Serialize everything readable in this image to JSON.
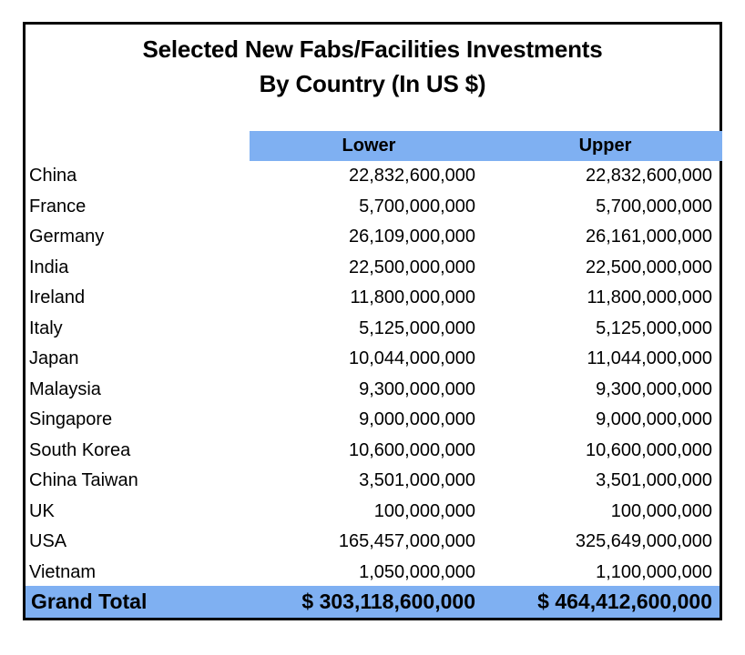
{
  "chart_data": {
    "type": "table",
    "title": "Selected New Fabs/Facilities Investments",
    "subtitle": "By Country (In US $)",
    "columns": [
      "",
      "Lower",
      "Upper"
    ],
    "rows": [
      {
        "country": "China",
        "lower": "22,832,600,000",
        "upper": "22,832,600,000"
      },
      {
        "country": "France",
        "lower": "5,700,000,000",
        "upper": "5,700,000,000"
      },
      {
        "country": "Germany",
        "lower": "26,109,000,000",
        "upper": "26,161,000,000"
      },
      {
        "country": "India",
        "lower": "22,500,000,000",
        "upper": "22,500,000,000"
      },
      {
        "country": "Ireland",
        "lower": "11,800,000,000",
        "upper": "11,800,000,000"
      },
      {
        "country": "Italy",
        "lower": "5,125,000,000",
        "upper": "5,125,000,000"
      },
      {
        "country": "Japan",
        "lower": "10,044,000,000",
        "upper": "11,044,000,000"
      },
      {
        "country": "Malaysia",
        "lower": "9,300,000,000",
        "upper": "9,300,000,000"
      },
      {
        "country": "Singapore",
        "lower": "9,000,000,000",
        "upper": "9,000,000,000"
      },
      {
        "country": "South Korea",
        "lower": "10,600,000,000",
        "upper": "10,600,000,000"
      },
      {
        "country": "China Taiwan",
        "lower": "3,501,000,000",
        "upper": "3,501,000,000"
      },
      {
        "country": "UK",
        "lower": "100,000,000",
        "upper": "100,000,000"
      },
      {
        "country": "USA",
        "lower": "165,457,000,000",
        "upper": "325,649,000,000"
      },
      {
        "country": "Vietnam",
        "lower": "1,050,000,000",
        "upper": "1,100,000,000"
      }
    ],
    "total": {
      "label": "Grand Total",
      "lower": "$ 303,118,600,000",
      "upper": "$ 464,412,600,000"
    },
    "colors": {
      "header_fill": "#7fb0f2",
      "border": "#000000"
    }
  }
}
